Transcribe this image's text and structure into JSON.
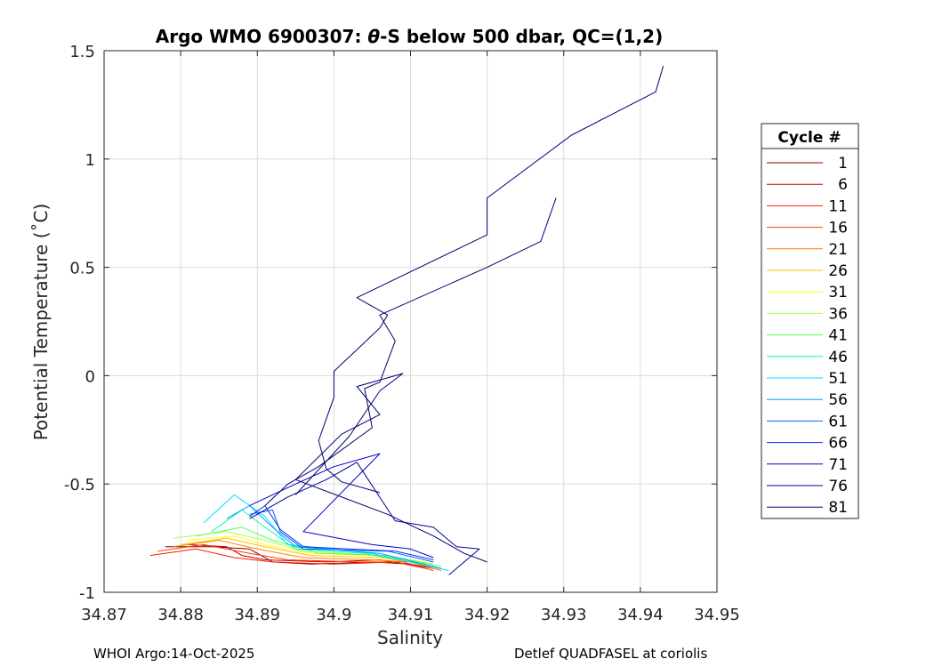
{
  "chart_data": {
    "type": "line",
    "title": "Argo WMO 6900307: θ-S below 500 dbar,  QC=(1,2)",
    "title_parts": {
      "prefix": "Argo WMO 6900307: ",
      "theta": "θ",
      "suffix": "-S below 500 dbar,  QC=(1,2)"
    },
    "xlabel": "Salinity",
    "ylabel": "Potential Temperature (˚C)",
    "xlim": [
      34.87,
      34.95
    ],
    "ylim": [
      -1,
      1.5
    ],
    "x_ticks": [
      "34.87",
      "34.88",
      "34.89",
      "34.9",
      "34.91",
      "34.92",
      "34.93",
      "34.94",
      "34.95"
    ],
    "y_ticks": [
      "-1",
      "-0.5",
      "0",
      "0.5",
      "1",
      "1.5"
    ],
    "grid": true,
    "legend": {
      "title": "Cycle #",
      "placement": "outside-right",
      "entries": [
        {
          "label": "1",
          "color": "#800000"
        },
        {
          "label": "6",
          "color": "#bf0000"
        },
        {
          "label": "11",
          "color": "#ff1a00"
        },
        {
          "label": "16",
          "color": "#ff4000"
        },
        {
          "label": "21",
          "color": "#ff8000"
        },
        {
          "label": "26",
          "color": "#ffbf00"
        },
        {
          "label": "31",
          "color": "#ffff00"
        },
        {
          "label": "36",
          "color": "#aaff55"
        },
        {
          "label": "41",
          "color": "#55ff55"
        },
        {
          "label": "46",
          "color": "#00ffaa"
        },
        {
          "label": "51",
          "color": "#00dfff"
        },
        {
          "label": "56",
          "color": "#0099ff"
        },
        {
          "label": "61",
          "color": "#0060ff"
        },
        {
          "label": "66",
          "color": "#0030f0"
        },
        {
          "label": "71",
          "color": "#0000cc"
        },
        {
          "label": "76",
          "color": "#000099"
        },
        {
          "label": "81",
          "color": "#000070"
        }
      ]
    },
    "series": [
      {
        "cycle": "1",
        "color": "#800000",
        "points": [
          [
            34.878,
            -0.79
          ],
          [
            34.884,
            -0.79
          ],
          [
            34.889,
            -0.8
          ],
          [
            34.892,
            -0.86
          ],
          [
            34.897,
            -0.87
          ],
          [
            34.905,
            -0.86
          ],
          [
            34.91,
            -0.87
          ],
          [
            34.913,
            -0.89
          ]
        ]
      },
      {
        "cycle": "6",
        "color": "#bf0000",
        "points": [
          [
            34.881,
            -0.78
          ],
          [
            34.886,
            -0.79
          ],
          [
            34.888,
            -0.83
          ],
          [
            34.891,
            -0.85
          ],
          [
            34.899,
            -0.86
          ],
          [
            34.906,
            -0.85
          ],
          [
            34.911,
            -0.88
          ]
        ]
      },
      {
        "cycle": "11",
        "color": "#ff1a00",
        "points": [
          [
            34.876,
            -0.83
          ],
          [
            34.882,
            -0.8
          ],
          [
            34.887,
            -0.84
          ],
          [
            34.892,
            -0.86
          ],
          [
            34.9,
            -0.87
          ],
          [
            34.908,
            -0.86
          ],
          [
            34.912,
            -0.89
          ]
        ]
      },
      {
        "cycle": "16",
        "color": "#ff4000",
        "points": [
          [
            34.877,
            -0.81
          ],
          [
            34.883,
            -0.78
          ],
          [
            34.889,
            -0.82
          ],
          [
            34.894,
            -0.85
          ],
          [
            34.903,
            -0.86
          ],
          [
            34.909,
            -0.86
          ],
          [
            34.913,
            -0.9
          ]
        ]
      },
      {
        "cycle": "21",
        "color": "#ff8000",
        "points": [
          [
            34.879,
            -0.79
          ],
          [
            34.885,
            -0.76
          ],
          [
            34.89,
            -0.8
          ],
          [
            34.896,
            -0.84
          ],
          [
            34.905,
            -0.85
          ],
          [
            34.91,
            -0.86
          ],
          [
            34.914,
            -0.9
          ]
        ]
      },
      {
        "cycle": "26",
        "color": "#ffbf00",
        "points": [
          [
            34.88,
            -0.78
          ],
          [
            34.886,
            -0.75
          ],
          [
            34.891,
            -0.79
          ],
          [
            34.897,
            -0.83
          ],
          [
            34.906,
            -0.84
          ],
          [
            34.912,
            -0.87
          ]
        ]
      },
      {
        "cycle": "31",
        "color": "#ffff00",
        "points": [
          [
            34.881,
            -0.76
          ],
          [
            34.887,
            -0.74
          ],
          [
            34.891,
            -0.78
          ],
          [
            34.897,
            -0.82
          ],
          [
            34.905,
            -0.83
          ],
          [
            34.912,
            -0.86
          ]
        ]
      },
      {
        "cycle": "36",
        "color": "#aaff55",
        "points": [
          [
            34.879,
            -0.75
          ],
          [
            34.886,
            -0.72
          ],
          [
            34.891,
            -0.76
          ],
          [
            34.896,
            -0.81
          ],
          [
            34.906,
            -0.83
          ],
          [
            34.913,
            -0.87
          ]
        ]
      },
      {
        "cycle": "41",
        "color": "#55ff55",
        "points": [
          [
            34.882,
            -0.74
          ],
          [
            34.888,
            -0.7
          ],
          [
            34.892,
            -0.76
          ],
          [
            34.898,
            -0.82
          ],
          [
            34.907,
            -0.83
          ],
          [
            34.914,
            -0.88
          ]
        ]
      },
      {
        "cycle": "46",
        "color": "#00ffaa",
        "points": [
          [
            34.884,
            -0.72
          ],
          [
            34.888,
            -0.62
          ],
          [
            34.891,
            -0.7
          ],
          [
            34.895,
            -0.8
          ],
          [
            34.904,
            -0.82
          ],
          [
            34.913,
            -0.88
          ]
        ]
      },
      {
        "cycle": "51",
        "color": "#00dfff",
        "points": [
          [
            34.883,
            -0.68
          ],
          [
            34.887,
            -0.55
          ],
          [
            34.891,
            -0.65
          ],
          [
            34.894,
            -0.78
          ],
          [
            34.905,
            -0.82
          ],
          [
            34.915,
            -0.9
          ]
        ]
      },
      {
        "cycle": "56",
        "color": "#0099ff",
        "points": [
          [
            34.886,
            -0.66
          ],
          [
            34.889,
            -0.6
          ],
          [
            34.892,
            -0.7
          ],
          [
            34.895,
            -0.79
          ],
          [
            34.906,
            -0.82
          ],
          [
            34.914,
            -0.89
          ]
        ]
      },
      {
        "cycle": "61",
        "color": "#0060ff",
        "points": [
          [
            34.889,
            -0.64
          ],
          [
            34.892,
            -0.62
          ],
          [
            34.893,
            -0.72
          ],
          [
            34.896,
            -0.8
          ],
          [
            34.907,
            -0.81
          ],
          [
            34.913,
            -0.86
          ]
        ]
      },
      {
        "cycle": "66",
        "color": "#0030f0",
        "points": [
          [
            34.889,
            -0.65
          ],
          [
            34.891,
            -0.6
          ],
          [
            34.893,
            -0.71
          ],
          [
            34.896,
            -0.79
          ],
          [
            34.908,
            -0.81
          ],
          [
            34.913,
            -0.85
          ]
        ]
      },
      {
        "cycle": "71",
        "color": "#0000cc",
        "points": [
          [
            34.889,
            -0.6
          ],
          [
            34.895,
            -0.5
          ],
          [
            34.9,
            -0.42
          ],
          [
            34.906,
            -0.36
          ],
          [
            34.896,
            -0.72
          ],
          [
            34.905,
            -0.78
          ],
          [
            34.91,
            -0.8
          ],
          [
            34.913,
            -0.84
          ]
        ]
      },
      {
        "cycle": "76",
        "color": "#000099",
        "points": [
          [
            34.889,
            -0.66
          ],
          [
            34.894,
            -0.56
          ],
          [
            34.899,
            -0.48
          ],
          [
            34.903,
            -0.4
          ],
          [
            34.908,
            -0.67
          ],
          [
            34.913,
            -0.7
          ],
          [
            34.916,
            -0.79
          ],
          [
            34.919,
            -0.8
          ],
          [
            34.915,
            -0.92
          ]
        ]
      },
      {
        "cycle": "81",
        "color": "#000070",
        "points": [
          [
            34.906,
            -0.54
          ],
          [
            34.901,
            -0.49
          ],
          [
            34.899,
            -0.43
          ],
          [
            34.898,
            -0.3
          ],
          [
            34.899,
            -0.2
          ],
          [
            34.9,
            -0.1
          ],
          [
            34.9,
            0.02
          ],
          [
            34.903,
            0.12
          ],
          [
            34.906,
            0.22
          ],
          [
            34.907,
            0.28
          ],
          [
            34.903,
            0.36
          ],
          [
            34.92,
            0.65
          ],
          [
            34.92,
            0.82
          ],
          [
            34.931,
            1.11
          ],
          [
            34.942,
            1.31
          ],
          [
            34.943,
            1.43
          ]
        ]
      },
      {
        "cycle": "81",
        "color": "#000070",
        "points": [
          [
            34.891,
            -0.6
          ],
          [
            34.894,
            -0.5
          ],
          [
            34.898,
            -0.42
          ],
          [
            34.905,
            -0.24
          ],
          [
            34.904,
            -0.06
          ],
          [
            34.906,
            -0.03
          ],
          [
            34.908,
            0.16
          ],
          [
            34.906,
            0.28
          ],
          [
            34.92,
            0.5
          ],
          [
            34.927,
            0.62
          ],
          [
            34.929,
            0.82
          ]
        ]
      },
      {
        "cycle": "81",
        "color": "#000070",
        "points": [
          [
            34.895,
            -0.55
          ],
          [
            34.902,
            -0.28
          ],
          [
            34.906,
            -0.07
          ],
          [
            34.909,
            0.01
          ],
          [
            34.903,
            -0.05
          ],
          [
            34.906,
            -0.18
          ],
          [
            34.901,
            -0.27
          ],
          [
            34.895,
            -0.48
          ],
          [
            34.907,
            -0.64
          ],
          [
            34.913,
            -0.74
          ],
          [
            34.917,
            -0.82
          ],
          [
            34.92,
            -0.86
          ]
        ]
      }
    ]
  },
  "footer": {
    "left": "WHOI Argo:14-Oct-2025",
    "right": "Detlef QUADFASEL at coriolis"
  }
}
